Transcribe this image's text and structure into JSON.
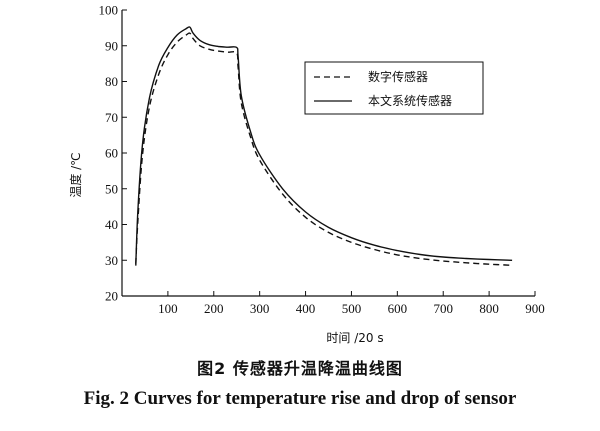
{
  "chart_data": {
    "type": "line",
    "xlabel": "时间 /20 s",
    "ylabel": "温度 /℃",
    "xlim": [
      0,
      900
    ],
    "ylim": [
      20,
      100
    ],
    "xticks": [
      100,
      200,
      300,
      400,
      500,
      600,
      700,
      800,
      900
    ],
    "yticks": [
      20,
      30,
      40,
      50,
      60,
      70,
      80,
      90,
      100
    ],
    "grid": false,
    "legend_position": "top-right",
    "series": [
      {
        "name": "数字传感器",
        "style": "dashed",
        "color": "#111111",
        "x": [
          30,
          35,
          45,
          60,
          80,
          100,
          120,
          140,
          148,
          155,
          170,
          190,
          210,
          230,
          250,
          253,
          260,
          280,
          300,
          350,
          400,
          450,
          500,
          550,
          600,
          650,
          700,
          750,
          800,
          850
        ],
        "y": [
          29.0,
          42.0,
          60.0,
          73.0,
          82.0,
          87.5,
          91.0,
          93.0,
          93.5,
          92.0,
          90.0,
          89.0,
          88.5,
          88.2,
          88.0,
          84.0,
          74.0,
          64.5,
          58.0,
          48.5,
          42.0,
          37.8,
          35.0,
          33.0,
          31.5,
          30.5,
          29.8,
          29.3,
          28.9,
          28.6
        ]
      },
      {
        "name": "本文系统传感器",
        "style": "solid",
        "color": "#111111",
        "x": [
          30,
          35,
          45,
          60,
          80,
          100,
          120,
          140,
          148,
          155,
          170,
          190,
          210,
          230,
          250,
          253,
          260,
          280,
          300,
          350,
          400,
          450,
          500,
          550,
          600,
          650,
          700,
          750,
          800,
          850
        ],
        "y": [
          28.5,
          45.0,
          63.0,
          75.5,
          84.5,
          89.5,
          93.0,
          94.8,
          95.2,
          93.5,
          91.5,
          90.3,
          89.8,
          89.6,
          89.5,
          87.0,
          76.0,
          66.0,
          59.5,
          50.0,
          43.5,
          39.2,
          36.3,
          34.2,
          32.7,
          31.6,
          30.9,
          30.5,
          30.2,
          30.0
        ]
      }
    ]
  },
  "caption": {
    "cn": "图2  传感器升温降温曲线图",
    "en": "Fig. 2   Curves for temperature rise and drop of sensor"
  }
}
